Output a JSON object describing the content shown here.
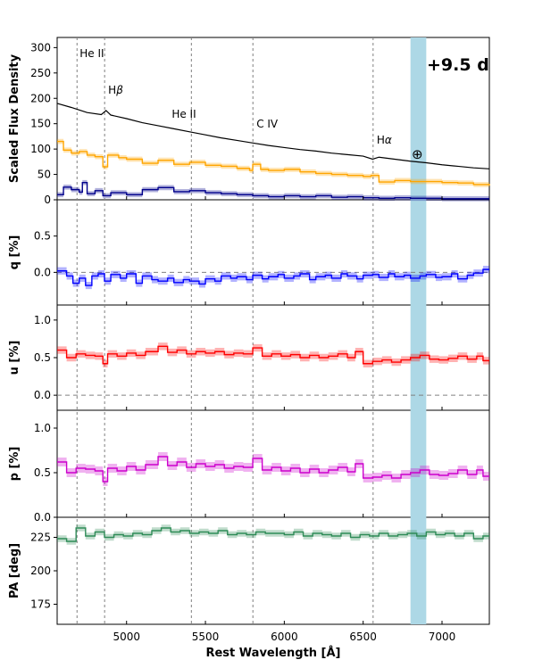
{
  "epoch_label": "+9.5 d",
  "telluric_symbol": "⊕",
  "x_axis_label": "Rest Wavelength [Å]",
  "colors": {
    "flux_total": "#000000",
    "flux_polarized_mid": "#ffa500",
    "flux_polarized_low": "#00008b",
    "q": "#0000ff",
    "u": "#ff0000",
    "p": "#cc00cc",
    "pa": "#2e8b57",
    "telluric_band": "#add8e6"
  },
  "chart_data": [
    {
      "type": "line",
      "panel": "flux",
      "ylabel": "Scaled Flux Density",
      "xlim": [
        4560,
        7300
      ],
      "ylim": [
        0,
        320
      ],
      "yticks": [
        0,
        50,
        100,
        150,
        200,
        250,
        300
      ],
      "xticks": [
        5000,
        5500,
        6000,
        6500,
        7000
      ],
      "line_ids": [
        {
          "label": "He II",
          "wavelength": 4686
        },
        {
          "label": "Hβ",
          "wavelength": 4861
        },
        {
          "label": "He II",
          "wavelength": 5411
        },
        {
          "label": "C IV",
          "wavelength": 5801
        },
        {
          "label": "Hα",
          "wavelength": 6563
        }
      ],
      "telluric_band": [
        6800,
        6900
      ],
      "series": [
        {
          "x": [
            4560,
            4650,
            4750,
            4840,
            4870,
            4900,
            5000,
            5100,
            5200,
            5300,
            5400,
            5500,
            5600,
            5700,
            5800,
            5900,
            6000,
            6100,
            6200,
            6300,
            6400,
            6500,
            6560,
            6600,
            6700,
            6800,
            6900,
            7000,
            7100,
            7200,
            7300
          ],
          "y": [
            190,
            182,
            172,
            168,
            176,
            167,
            160,
            152,
            146,
            140,
            134,
            128,
            122,
            117,
            112,
            107,
            103,
            99,
            96,
            92,
            89,
            86,
            80,
            84,
            80,
            76,
            73,
            69,
            66,
            63,
            61
          ]
        },
        {
          "x": [
            4560,
            4600,
            4650,
            4700,
            4750,
            4800,
            4850,
            4880,
            4950,
            5000,
            5100,
            5200,
            5300,
            5400,
            5500,
            5600,
            5700,
            5780,
            5800,
            5850,
            5900,
            6000,
            6100,
            6200,
            6300,
            6400,
            6500,
            6550,
            6600,
            6700,
            6800,
            6900,
            7000,
            7100,
            7200,
            7300
          ],
          "y": [
            115,
            98,
            92,
            95,
            88,
            85,
            65,
            88,
            83,
            80,
            72,
            78,
            70,
            74,
            68,
            66,
            62,
            58,
            70,
            60,
            58,
            60,
            55,
            52,
            50,
            48,
            46,
            48,
            35,
            38,
            36,
            36,
            34,
            33,
            30,
            28
          ]
        },
        {
          "x": [
            4560,
            4600,
            4650,
            4700,
            4720,
            4750,
            4800,
            4850,
            4900,
            5000,
            5100,
            5200,
            5300,
            5400,
            5500,
            5600,
            5700,
            5800,
            5900,
            6000,
            6100,
            6200,
            6300,
            6400,
            6500,
            6600,
            6700,
            6800,
            6900,
            7000,
            7100,
            7200,
            7300
          ],
          "y": [
            10,
            25,
            20,
            15,
            34,
            12,
            18,
            8,
            14,
            10,
            20,
            24,
            16,
            18,
            14,
            12,
            10,
            8,
            6,
            8,
            6,
            8,
            5,
            6,
            4,
            3,
            4,
            3,
            3,
            2,
            2,
            2,
            2
          ]
        }
      ]
    },
    {
      "type": "line",
      "panel": "q",
      "ylabel": "q [%]",
      "xlim": [
        4560,
        7300
      ],
      "ylim": [
        -0.45,
        1.0
      ],
      "yticks": [
        0.0,
        0.5
      ],
      "reference_y": 0.0,
      "series": [
        {
          "x": [
            4560,
            4620,
            4660,
            4700,
            4740,
            4780,
            4820,
            4860,
            4900,
            4960,
            5000,
            5060,
            5100,
            5160,
            5200,
            5260,
            5300,
            5360,
            5400,
            5460,
            5500,
            5560,
            5600,
            5660,
            5700,
            5760,
            5800,
            5860,
            5900,
            5960,
            6000,
            6060,
            6100,
            6160,
            6200,
            6260,
            6300,
            6360,
            6400,
            6460,
            6500,
            6560,
            6600,
            6660,
            6700,
            6760,
            6800,
            6860,
            6900,
            6960,
            7000,
            7060,
            7100,
            7160,
            7200,
            7260
          ],
          "y": [
            0.02,
            -0.05,
            -0.15,
            -0.08,
            -0.18,
            -0.05,
            -0.02,
            -0.12,
            -0.03,
            -0.08,
            -0.02,
            -0.15,
            -0.05,
            -0.1,
            -0.12,
            -0.08,
            -0.14,
            -0.1,
            -0.12,
            -0.16,
            -0.09,
            -0.12,
            -0.05,
            -0.08,
            -0.06,
            -0.1,
            -0.04,
            -0.09,
            -0.06,
            -0.03,
            -0.08,
            -0.05,
            -0.02,
            -0.1,
            -0.06,
            -0.04,
            -0.08,
            -0.02,
            -0.05,
            -0.09,
            -0.04,
            -0.03,
            -0.07,
            -0.02,
            -0.06,
            -0.04,
            -0.08,
            -0.05,
            -0.03,
            -0.07,
            -0.06,
            -0.02,
            -0.09,
            -0.04,
            -0.01,
            0.04
          ]
        }
      ]
    },
    {
      "type": "line",
      "panel": "u",
      "ylabel": "u [%]",
      "xlim": [
        4560,
        7300
      ],
      "ylim": [
        -0.2,
        1.2
      ],
      "yticks": [
        0.0,
        0.5,
        1.0
      ],
      "reference_y": 0.0,
      "series": [
        {
          "x": [
            4560,
            4620,
            4680,
            4740,
            4800,
            4850,
            4880,
            4940,
            5000,
            5060,
            5120,
            5200,
            5260,
            5320,
            5380,
            5440,
            5500,
            5560,
            5620,
            5680,
            5740,
            5800,
            5860,
            5920,
            5980,
            6040,
            6100,
            6160,
            6220,
            6280,
            6340,
            6400,
            6450,
            6500,
            6560,
            6620,
            6680,
            6740,
            6800,
            6860,
            6920,
            6980,
            7040,
            7100,
            7160,
            7220,
            7260
          ],
          "y": [
            0.6,
            0.5,
            0.55,
            0.53,
            0.52,
            0.42,
            0.55,
            0.52,
            0.56,
            0.53,
            0.58,
            0.65,
            0.57,
            0.6,
            0.55,
            0.58,
            0.56,
            0.58,
            0.54,
            0.56,
            0.55,
            0.63,
            0.52,
            0.55,
            0.52,
            0.54,
            0.5,
            0.53,
            0.5,
            0.52,
            0.55,
            0.5,
            0.58,
            0.42,
            0.45,
            0.47,
            0.44,
            0.47,
            0.5,
            0.53,
            0.48,
            0.47,
            0.49,
            0.52,
            0.48,
            0.52,
            0.46
          ]
        }
      ]
    },
    {
      "type": "line",
      "panel": "p",
      "ylabel": "p [%]",
      "xlim": [
        4560,
        7300
      ],
      "ylim": [
        0.0,
        1.2
      ],
      "yticks": [
        0.0,
        0.5,
        1.0
      ],
      "series": [
        {
          "x": [
            4560,
            4620,
            4680,
            4740,
            4800,
            4850,
            4880,
            4940,
            5000,
            5060,
            5120,
            5200,
            5260,
            5320,
            5380,
            5440,
            5500,
            5560,
            5620,
            5680,
            5740,
            5800,
            5860,
            5920,
            5980,
            6040,
            6100,
            6160,
            6220,
            6280,
            6340,
            6400,
            6450,
            6500,
            6560,
            6620,
            6680,
            6740,
            6800,
            6860,
            6920,
            6980,
            7040,
            7100,
            7160,
            7220,
            7260
          ],
          "y": [
            0.62,
            0.5,
            0.55,
            0.54,
            0.52,
            0.4,
            0.55,
            0.52,
            0.57,
            0.53,
            0.59,
            0.68,
            0.58,
            0.62,
            0.56,
            0.6,
            0.57,
            0.59,
            0.55,
            0.57,
            0.56,
            0.66,
            0.53,
            0.56,
            0.52,
            0.55,
            0.5,
            0.54,
            0.5,
            0.53,
            0.56,
            0.51,
            0.6,
            0.44,
            0.45,
            0.47,
            0.44,
            0.48,
            0.5,
            0.53,
            0.48,
            0.47,
            0.49,
            0.53,
            0.48,
            0.53,
            0.46
          ]
        }
      ]
    },
    {
      "type": "line",
      "panel": "pa",
      "ylabel": "PA [deg]",
      "xlim": [
        4560,
        7300
      ],
      "ylim": [
        160,
        240
      ],
      "yticks": [
        175,
        200,
        225
      ],
      "series": [
        {
          "x": [
            4560,
            4620,
            4680,
            4740,
            4800,
            4860,
            4920,
            4980,
            5040,
            5100,
            5160,
            5220,
            5280,
            5340,
            5400,
            5460,
            5520,
            5580,
            5640,
            5700,
            5760,
            5820,
            5880,
            5940,
            6000,
            6060,
            6120,
            6180,
            6240,
            6300,
            6360,
            6420,
            6480,
            6540,
            6600,
            6660,
            6720,
            6780,
            6840,
            6900,
            6960,
            7020,
            7080,
            7140,
            7200,
            7260
          ],
          "y": [
            224,
            222,
            232,
            226,
            229,
            225,
            227,
            226,
            228,
            227,
            230,
            232,
            229,
            230,
            228,
            229,
            228,
            230,
            227,
            228,
            227,
            229,
            228,
            228,
            227,
            229,
            226,
            228,
            227,
            226,
            228,
            225,
            227,
            226,
            228,
            226,
            227,
            228,
            226,
            229,
            227,
            228,
            226,
            228,
            224,
            226
          ]
        }
      ]
    }
  ]
}
